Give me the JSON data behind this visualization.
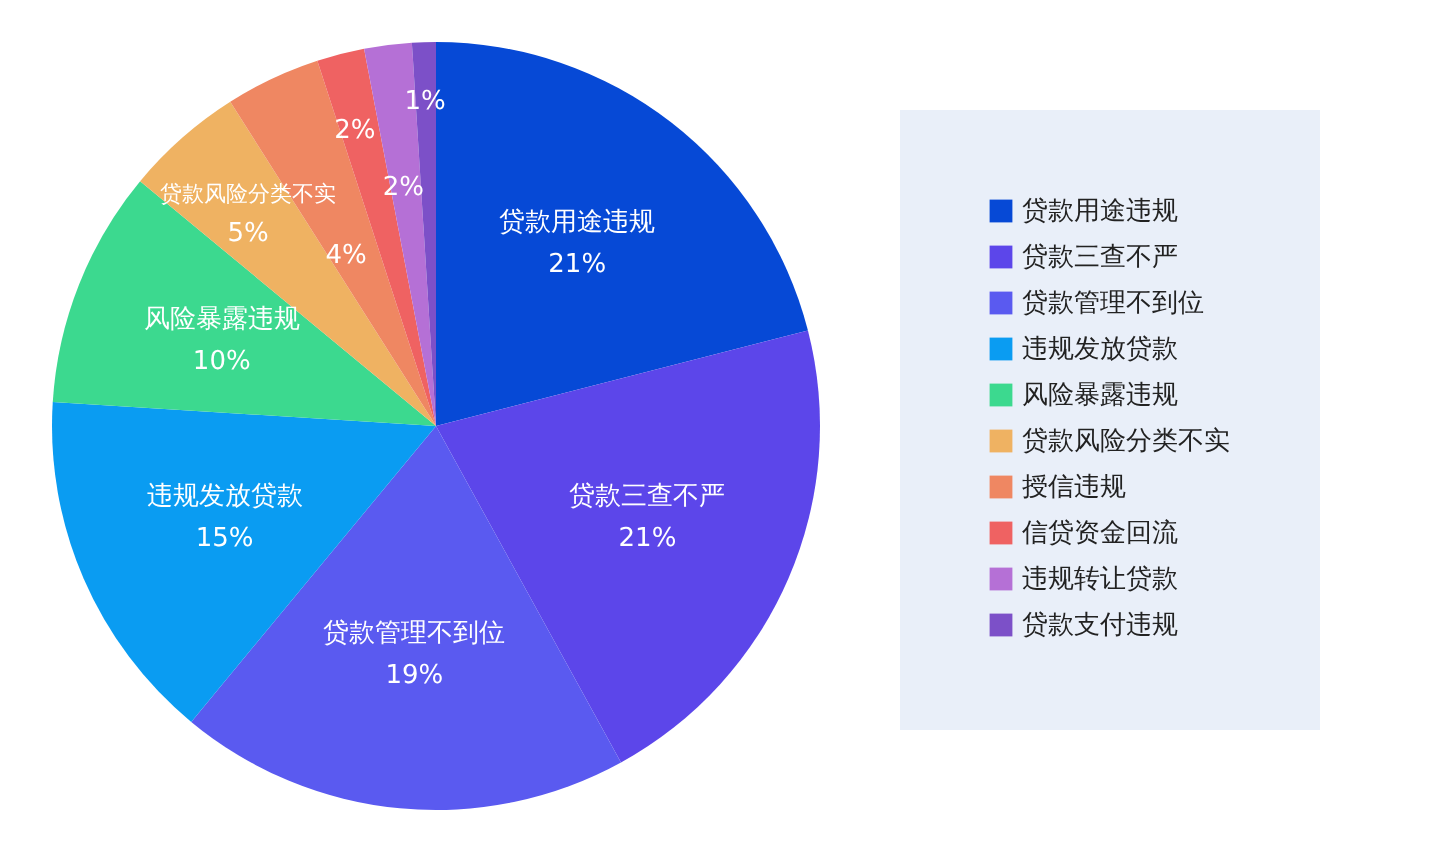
{
  "chart_data": {
    "type": "pie",
    "categories": [
      "贷款用途违规",
      "贷款三查不严",
      "贷款管理不到位",
      "违规发放贷款",
      "风险暴露违规",
      "贷款风险分类不实",
      "授信违规",
      "信贷资金回流",
      "违规转让贷款",
      "贷款支付违规"
    ],
    "values": [
      21,
      21,
      19,
      15,
      10,
      5,
      4,
      2,
      2,
      1
    ],
    "colors": [
      "#0649d6",
      "#5c46ea",
      "#5a5af0",
      "#0a9cf2",
      "#3cd98f",
      "#efb262",
      "#ef8762",
      "#ef6262",
      "#b570d6",
      "#7c50c8"
    ],
    "value_labels": [
      "21%",
      "21%",
      "19%",
      "15%",
      "10%",
      "5%",
      "4%",
      "2%",
      "2%",
      "1%"
    ],
    "legend": "right"
  }
}
